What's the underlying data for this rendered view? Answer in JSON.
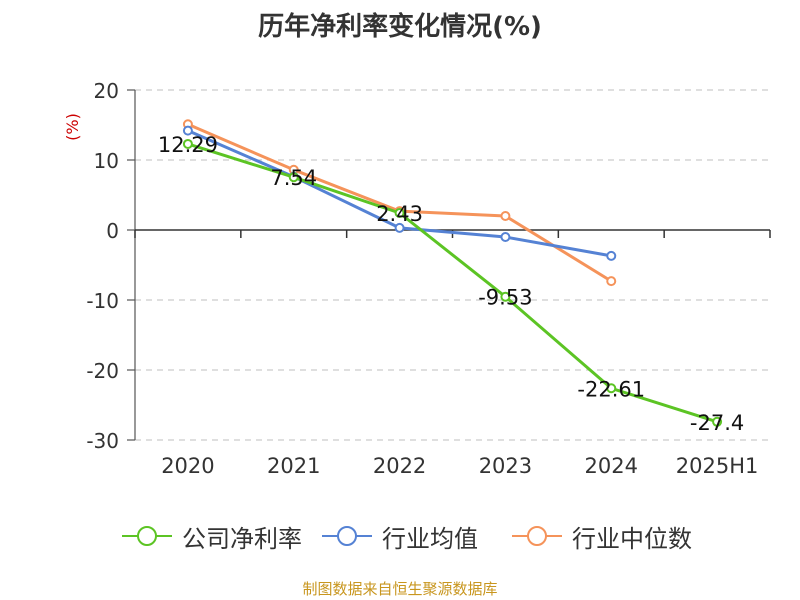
{
  "source_note": "制图数据来自恒生聚源数据库",
  "chart_data": {
    "type": "line",
    "title": "历年净利率变化情况(%)",
    "ylabel": "(%)",
    "xlabel": "",
    "categories": [
      "2020",
      "2021",
      "2022",
      "2023",
      "2024",
      "2025H1"
    ],
    "ylim": [
      -30,
      20
    ],
    "yticks": [
      20,
      10,
      0,
      -10,
      -20,
      -30
    ],
    "grid": true,
    "legend_position": "bottom",
    "series": [
      {
        "name": "公司净利率",
        "color": "#5cc424",
        "values": [
          12.29,
          7.54,
          2.43,
          -9.53,
          -22.61,
          -27.4
        ],
        "labels": [
          "12.29",
          "7.54",
          "2.43",
          "-9.53",
          "-22.61",
          "-27.4"
        ]
      },
      {
        "name": "行业均值",
        "color": "#5582d4",
        "values": [
          14.2,
          7.6,
          0.3,
          -1.0,
          -3.7,
          null
        ]
      },
      {
        "name": "行业中位数",
        "color": "#f5935a",
        "values": [
          15.1,
          8.6,
          2.7,
          2.0,
          -7.3,
          null
        ]
      }
    ]
  }
}
